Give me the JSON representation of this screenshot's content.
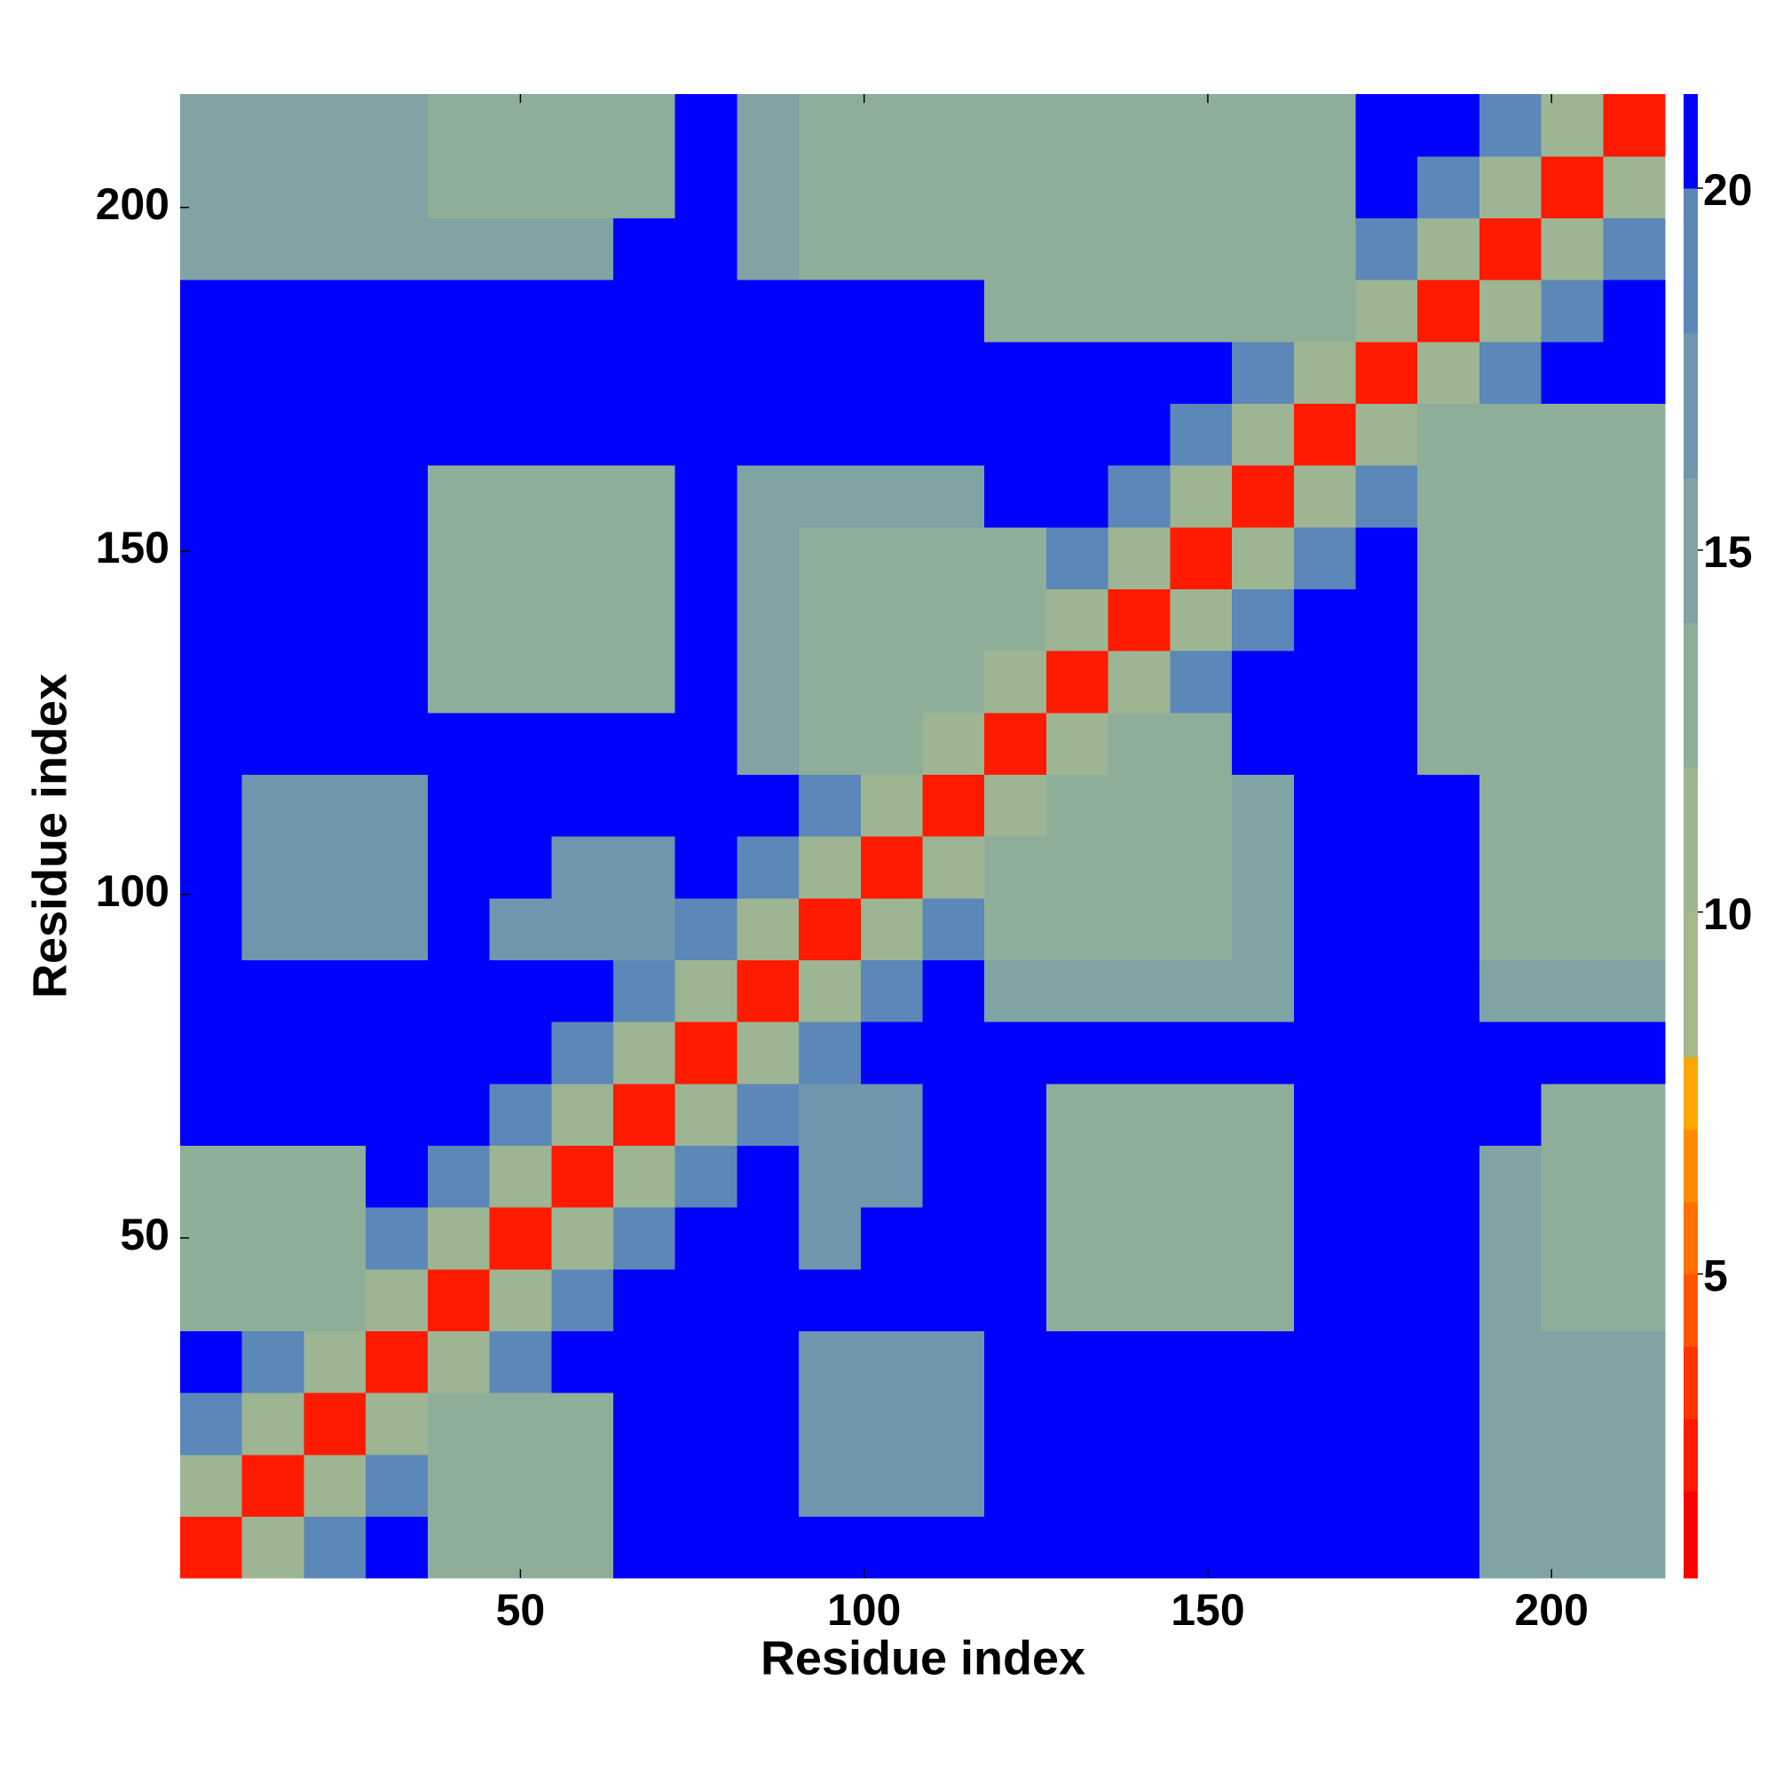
{
  "chart_data": {
    "type": "heatmap",
    "xlabel": "Residue index",
    "ylabel": "Residue index",
    "xbins": [
      0.5,
      9.5,
      18.5,
      27.5,
      36.5,
      45.5,
      54.5,
      63.5,
      72.5,
      81.5,
      90.5,
      99.5,
      108.5,
      117.5,
      126.5,
      135.5,
      144.5,
      153.5,
      162.5,
      171.5,
      180.5,
      189.5,
      198.5,
      207.5,
      216.5
    ],
    "ybins": [
      0.5,
      9.5,
      18.5,
      27.5,
      36.5,
      45.5,
      54.5,
      63.5,
      72.5,
      81.5,
      90.5,
      99.5,
      108.5,
      117.5,
      126.5,
      135.5,
      144.5,
      153.5,
      162.5,
      171.5,
      180.5,
      189.5,
      198.5,
      207.5,
      216.5
    ],
    "xlim": [
      0.5,
      216.5
    ],
    "ylim": [
      0.5,
      216.5
    ],
    "xticks": [
      50,
      100,
      150,
      200
    ],
    "yticks": [
      50,
      100,
      150,
      200
    ],
    "clim": [
      0.8,
      21.3
    ],
    "cticks": [
      5,
      10,
      15,
      20
    ],
    "color_levels": [
      2,
      3,
      4,
      5,
      6,
      7,
      8,
      10,
      12,
      14,
      16,
      18,
      20,
      21.3
    ],
    "level_colors": [
      "#ff0000",
      "#ff1a00",
      "#ff3300",
      "#ff5500",
      "#ff7000",
      "#ff8c00",
      "#ffa500",
      "#a3b98a",
      "#9db592",
      "#8fae9a",
      "#80a3a4",
      "#6f96ad",
      "#5b88b8",
      "#0000ff"
    ],
    "z": [
      [
        3,
        11,
        19,
        21,
        13,
        13,
        13,
        21,
        21,
        21,
        21,
        21,
        21,
        21,
        21,
        21,
        21,
        21,
        21,
        21,
        21,
        15,
        15,
        15
      ],
      [
        11,
        3,
        11,
        19,
        13,
        13,
        13,
        21,
        21,
        21,
        18,
        18,
        18,
        21,
        21,
        21,
        21,
        21,
        21,
        21,
        21,
        15,
        15,
        15
      ],
      [
        19,
        11,
        3,
        11,
        13,
        13,
        13,
        21,
        21,
        21,
        18,
        18,
        18,
        21,
        21,
        21,
        21,
        21,
        21,
        21,
        21,
        15,
        15,
        15
      ],
      [
        21,
        19,
        11,
        3,
        11,
        19,
        21,
        21,
        21,
        21,
        18,
        18,
        18,
        21,
        21,
        21,
        21,
        21,
        21,
        21,
        21,
        15,
        15,
        15
      ],
      [
        13,
        13,
        13,
        11,
        3,
        11,
        19,
        21,
        21,
        21,
        21,
        21,
        21,
        21,
        14,
        14,
        14,
        14,
        21,
        21,
        21,
        15,
        14,
        14
      ],
      [
        13,
        13,
        13,
        19,
        11,
        3,
        11,
        19,
        21,
        21,
        18,
        21,
        21,
        21,
        14,
        14,
        14,
        14,
        21,
        21,
        21,
        15,
        14,
        14
      ],
      [
        13,
        13,
        13,
        21,
        19,
        11,
        3,
        11,
        19,
        21,
        17,
        17,
        21,
        21,
        14,
        14,
        14,
        14,
        21,
        21,
        21,
        15,
        14,
        14
      ],
      [
        21,
        21,
        21,
        21,
        21,
        19,
        11,
        3,
        11,
        19,
        17,
        17,
        21,
        21,
        14,
        14,
        14,
        14,
        21,
        21,
        21,
        21,
        14,
        14
      ],
      [
        21,
        21,
        21,
        21,
        21,
        21,
        19,
        11,
        3,
        11,
        19,
        21,
        21,
        21,
        21,
        21,
        21,
        21,
        21,
        21,
        21,
        21,
        21,
        21
      ],
      [
        21,
        21,
        21,
        21,
        21,
        21,
        21,
        19,
        11,
        3,
        11,
        19,
        21,
        15,
        15,
        15,
        15,
        15,
        21,
        21,
        21,
        16,
        16,
        16
      ],
      [
        21,
        18,
        18,
        18,
        21,
        18,
        17,
        17,
        19,
        11,
        3,
        11,
        19,
        14,
        14,
        14,
        14,
        15,
        21,
        21,
        21,
        14,
        14,
        14
      ],
      [
        21,
        18,
        18,
        18,
        21,
        21,
        17,
        17,
        21,
        19,
        11,
        3,
        11,
        14,
        14,
        14,
        14,
        15,
        21,
        21,
        21,
        14,
        14,
        14
      ],
      [
        21,
        18,
        18,
        18,
        21,
        21,
        21,
        21,
        21,
        21,
        19,
        11,
        3,
        11,
        14,
        14,
        14,
        15,
        21,
        21,
        21,
        14,
        14,
        14
      ],
      [
        21,
        21,
        21,
        21,
        21,
        21,
        21,
        21,
        21,
        15,
        14,
        14,
        11,
        3,
        11,
        14,
        14,
        21,
        21,
        21,
        14,
        14,
        14,
        14
      ],
      [
        21,
        21,
        21,
        21,
        14,
        14,
        14,
        14,
        21,
        15,
        14,
        14,
        14,
        11,
        3,
        11,
        19,
        21,
        21,
        21,
        14,
        14,
        14,
        14
      ],
      [
        21,
        21,
        21,
        21,
        14,
        14,
        14,
        14,
        21,
        15,
        14,
        14,
        14,
        14,
        11,
        3,
        11,
        19,
        21,
        21,
        14,
        14,
        14,
        14
      ],
      [
        21,
        21,
        21,
        21,
        14,
        14,
        14,
        14,
        21,
        15,
        14,
        14,
        14,
        14,
        19,
        11,
        3,
        11,
        19,
        21,
        14,
        14,
        14,
        14
      ],
      [
        21,
        21,
        21,
        21,
        14,
        14,
        14,
        14,
        21,
        15,
        15,
        15,
        15,
        21,
        21,
        19,
        11,
        3,
        11,
        19,
        14,
        14,
        14,
        14
      ],
      [
        21,
        21,
        21,
        21,
        21,
        21,
        21,
        21,
        21,
        21,
        21,
        21,
        21,
        21,
        21,
        21,
        19,
        11,
        3,
        11,
        14,
        14,
        14,
        14
      ],
      [
        21,
        21,
        21,
        21,
        21,
        21,
        21,
        21,
        21,
        21,
        21,
        21,
        21,
        21,
        21,
        21,
        21,
        19,
        11,
        3,
        11,
        19,
        21,
        21
      ],
      [
        21,
        21,
        21,
        21,
        21,
        21,
        21,
        21,
        21,
        21,
        21,
        21,
        21,
        14,
        14,
        14,
        14,
        14,
        14,
        11,
        3,
        11,
        19,
        21
      ],
      [
        15,
        15,
        15,
        15,
        15,
        15,
        15,
        21,
        21,
        16,
        14,
        14,
        14,
        14,
        14,
        14,
        14,
        14,
        14,
        19,
        11,
        3,
        11,
        19
      ],
      [
        15,
        15,
        15,
        15,
        14,
        14,
        14,
        14,
        21,
        16,
        14,
        14,
        14,
        14,
        14,
        14,
        14,
        14,
        14,
        21,
        19,
        11,
        3,
        11
      ],
      [
        15,
        15,
        15,
        15,
        14,
        14,
        14,
        14,
        21,
        16,
        14,
        14,
        14,
        14,
        14,
        14,
        14,
        14,
        14,
        21,
        21,
        19,
        11,
        3
      ]
    ]
  }
}
